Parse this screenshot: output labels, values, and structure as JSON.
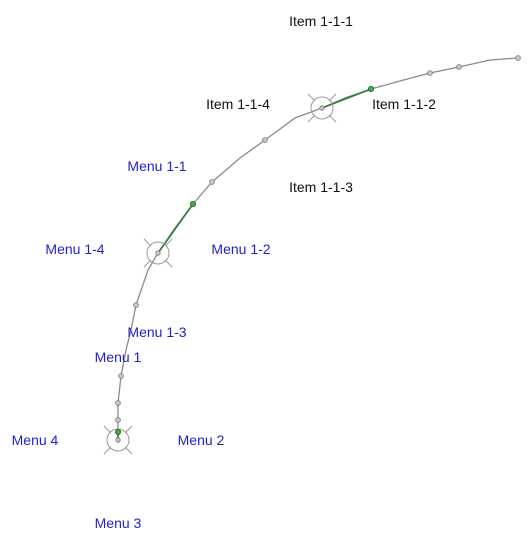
{
  "colors": {
    "path": "#8a8a8a",
    "active_segment": "#2e7d32",
    "node_fill": "#c8c8c8",
    "node_stroke": "#777777",
    "active_node_fill": "#3fae3f",
    "active_node_stroke": "#1b5e20",
    "hub_stroke": "#999999",
    "menu_text": "#2222cc",
    "item_text": "#111111"
  },
  "menu_level_1": {
    "north": "Menu 1",
    "east": "Menu 2",
    "south": "Menu 3",
    "west": "Menu 4"
  },
  "menu_level_2": {
    "north": "Menu 1-1",
    "east": "Menu 1-2",
    "south": "Menu 1-3",
    "west": "Menu 1-4"
  },
  "menu_level_3": {
    "north": "Item 1-1-1",
    "east": "Item 1-1-2",
    "south": "Item 1-1-3",
    "west": "Item 1-1-4"
  }
}
